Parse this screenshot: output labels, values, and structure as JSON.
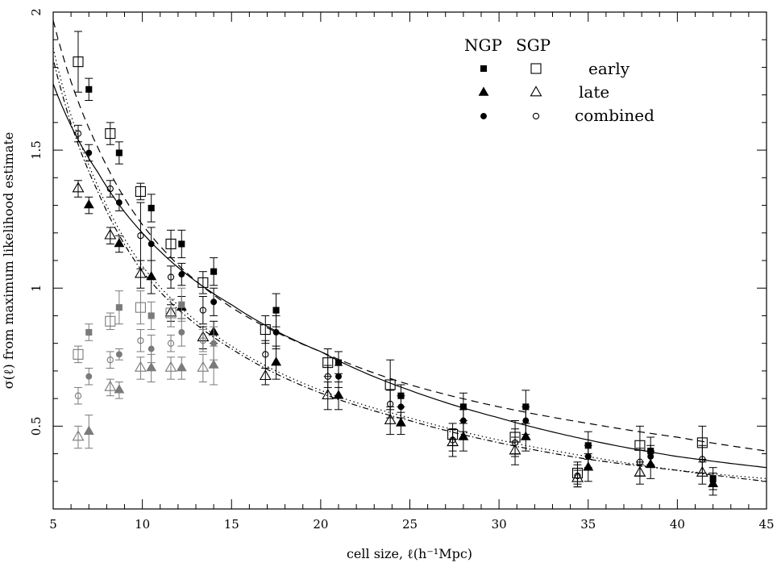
{
  "chart_data": {
    "type": "scatter",
    "title": "",
    "xlabel": "cell size, ℓ(h⁻¹Mpc)",
    "ylabel": "σ(ℓ) from maximum likelihood estimate",
    "xlim": [
      5,
      45
    ],
    "ylim": [
      0.2,
      2.0
    ],
    "xticks": [
      "5",
      "10",
      "15",
      "20",
      "25",
      "30",
      "35",
      "40",
      "45"
    ],
    "yticks": [
      "0.5",
      "1",
      "1.5",
      "2"
    ],
    "grid": false,
    "legend": {
      "placement": "top-right",
      "column_headers": [
        "NGP",
        "SGP"
      ],
      "rows": [
        "early",
        "late",
        "combined"
      ]
    },
    "colors": {
      "main": "#000000",
      "faint": "#7a7a7a"
    },
    "series": [
      {
        "marker": "filled-square",
        "region": "NGP",
        "type": "early",
        "x": [
          7.0,
          8.7,
          10.5,
          12.2,
          14.0,
          17.5,
          21.0,
          24.5,
          28.0,
          31.5,
          35.0,
          38.5,
          42.0
        ],
        "y": [
          1.72,
          1.49,
          1.29,
          1.16,
          1.06,
          0.92,
          0.73,
          0.61,
          0.57,
          0.57,
          0.43,
          0.41,
          0.31
        ],
        "err": [
          0.04,
          0.04,
          0.05,
          0.05,
          0.05,
          0.06,
          0.04,
          0.04,
          0.05,
          0.06,
          0.05,
          0.05,
          0.04
        ]
      },
      {
        "marker": "open-square",
        "region": "SGP",
        "type": "early",
        "x": [
          6.4,
          8.2,
          9.9,
          11.6,
          13.4,
          16.9,
          20.4,
          23.9,
          27.4,
          30.9,
          34.4,
          37.9,
          41.4
        ],
        "y": [
          1.82,
          1.56,
          1.35,
          1.16,
          1.02,
          0.85,
          0.73,
          0.65,
          0.47,
          0.46,
          0.33,
          0.43,
          0.44
        ],
        "err": [
          0.11,
          0.04,
          0.03,
          0.05,
          0.04,
          0.05,
          0.05,
          0.09,
          0.04,
          0.06,
          0.04,
          0.07,
          0.06
        ]
      },
      {
        "marker": "filled-triangle",
        "region": "NGP",
        "type": "late",
        "x": [
          7.0,
          8.7,
          10.5,
          12.2,
          14.0,
          17.5,
          21.0,
          24.5,
          28.0,
          31.5,
          35.0,
          38.5,
          42.0
        ],
        "y": [
          1.3,
          1.16,
          1.04,
          0.93,
          0.84,
          0.73,
          0.61,
          0.51,
          0.46,
          0.46,
          0.35,
          0.36,
          0.29
        ],
        "err": [
          0.03,
          0.03,
          0.06,
          0.04,
          0.04,
          0.06,
          0.05,
          0.04,
          0.05,
          0.05,
          0.05,
          0.05,
          0.04
        ]
      },
      {
        "marker": "open-triangle",
        "region": "SGP",
        "type": "late",
        "x": [
          6.4,
          8.2,
          9.9,
          11.6,
          13.4,
          16.9,
          20.4,
          23.9,
          27.4,
          30.9,
          34.4,
          37.9,
          41.4
        ],
        "y": [
          1.36,
          1.19,
          1.05,
          0.91,
          0.82,
          0.68,
          0.61,
          0.52,
          0.44,
          0.41,
          0.31,
          0.33,
          0.33
        ],
        "err": [
          0.03,
          0.03,
          0.05,
          0.03,
          0.04,
          0.03,
          0.05,
          0.05,
          0.05,
          0.05,
          0.03,
          0.04,
          0.04
        ]
      },
      {
        "marker": "filled-circle",
        "region": "NGP",
        "type": "combined",
        "x": [
          7.0,
          8.7,
          10.5,
          12.2,
          14.0,
          17.5,
          21.0,
          24.5,
          28.0,
          31.5,
          35.0,
          38.5,
          42.0
        ],
        "y": [
          1.49,
          1.31,
          1.16,
          1.05,
          0.95,
          0.84,
          0.68,
          0.57,
          0.52,
          0.52,
          0.39,
          0.39,
          0.3
        ],
        "err": [
          0.03,
          0.03,
          0.06,
          0.04,
          0.05,
          0.06,
          0.04,
          0.04,
          0.04,
          0.05,
          0.04,
          0.04,
          0.03
        ]
      },
      {
        "marker": "open-circle",
        "region": "SGP",
        "type": "combined",
        "x": [
          6.4,
          8.2,
          9.9,
          11.6,
          13.4,
          16.9,
          20.4,
          23.9,
          27.4,
          30.9,
          34.4,
          37.9,
          41.4
        ],
        "y": [
          1.56,
          1.36,
          1.19,
          1.04,
          0.92,
          0.76,
          0.68,
          0.58,
          0.45,
          0.44,
          0.32,
          0.37,
          0.38
        ],
        "err": [
          0.03,
          0.03,
          0.12,
          0.04,
          0.05,
          0.05,
          0.04,
          0.05,
          0.04,
          0.05,
          0.04,
          0.05,
          0.05
        ]
      },
      {
        "marker": "faint-filled-square",
        "region": "NGP",
        "type": "early",
        "x": [
          7.0,
          8.7,
          10.5,
          12.2
        ],
        "y": [
          0.84,
          0.93,
          0.9,
          0.94
        ],
        "err": [
          0.03,
          0.06,
          0.05,
          0.06
        ]
      },
      {
        "marker": "faint-open-square",
        "region": "SGP",
        "type": "early",
        "x": [
          6.4,
          8.2,
          9.9,
          11.6
        ],
        "y": [
          0.76,
          0.88,
          0.93,
          0.91
        ],
        "err": [
          0.03,
          0.03,
          0.06,
          0.05
        ]
      },
      {
        "marker": "faint-filled-triangle",
        "region": "NGP",
        "type": "late",
        "x": [
          7.0,
          8.7,
          10.5,
          12.2,
          14.0
        ],
        "y": [
          0.48,
          0.63,
          0.71,
          0.71,
          0.72
        ],
        "err": [
          0.06,
          0.03,
          0.05,
          0.04,
          0.07
        ]
      },
      {
        "marker": "faint-open-triangle",
        "region": "SGP",
        "type": "late",
        "x": [
          6.4,
          8.2,
          9.9,
          11.6,
          13.4
        ],
        "y": [
          0.46,
          0.64,
          0.71,
          0.71,
          0.71
        ],
        "err": [
          0.04,
          0.03,
          0.04,
          0.04,
          0.05
        ]
      },
      {
        "marker": "faint-filled-circle",
        "region": "NGP",
        "type": "combined",
        "x": [
          7.0,
          8.7,
          10.5,
          12.2,
          14.0
        ],
        "y": [
          0.68,
          0.76,
          0.78,
          0.84,
          0.8
        ],
        "err": [
          0.03,
          0.02,
          0.05,
          0.05,
          0.06
        ]
      },
      {
        "marker": "faint-open-circle",
        "region": "SGP",
        "type": "combined",
        "x": [
          6.4,
          8.2,
          9.9,
          11.6,
          13.4
        ],
        "y": [
          0.61,
          0.74,
          0.81,
          0.8,
          0.81
        ],
        "err": [
          0.03,
          0.03,
          0.04,
          0.03,
          0.04
        ]
      }
    ],
    "curves": [
      {
        "style": "solid",
        "x": [
          5,
          7.5,
          10,
          15,
          20,
          25,
          30,
          35,
          40,
          45
        ],
        "y": [
          1.74,
          1.42,
          1.2,
          0.94,
          0.77,
          0.63,
          0.53,
          0.45,
          0.39,
          0.35
        ]
      },
      {
        "style": "dashed",
        "x": [
          5,
          7.5,
          10,
          15,
          20,
          25,
          30,
          35,
          40,
          45
        ],
        "y": [
          1.97,
          1.51,
          1.23,
          0.93,
          0.77,
          0.65,
          0.57,
          0.51,
          0.46,
          0.41
        ]
      },
      {
        "style": "dotted",
        "x": [
          5,
          7.5,
          10,
          15,
          20,
          25,
          30,
          35,
          40,
          45
        ],
        "y": [
          1.87,
          1.37,
          1.08,
          0.79,
          0.63,
          0.53,
          0.45,
          0.39,
          0.34,
          0.31
        ]
      },
      {
        "style": "dotdash",
        "x": [
          5,
          7.5,
          10,
          15,
          20,
          25,
          30,
          35,
          40,
          45
        ],
        "y": [
          1.83,
          1.35,
          1.06,
          0.78,
          0.62,
          0.52,
          0.44,
          0.38,
          0.34,
          0.3
        ]
      }
    ]
  }
}
